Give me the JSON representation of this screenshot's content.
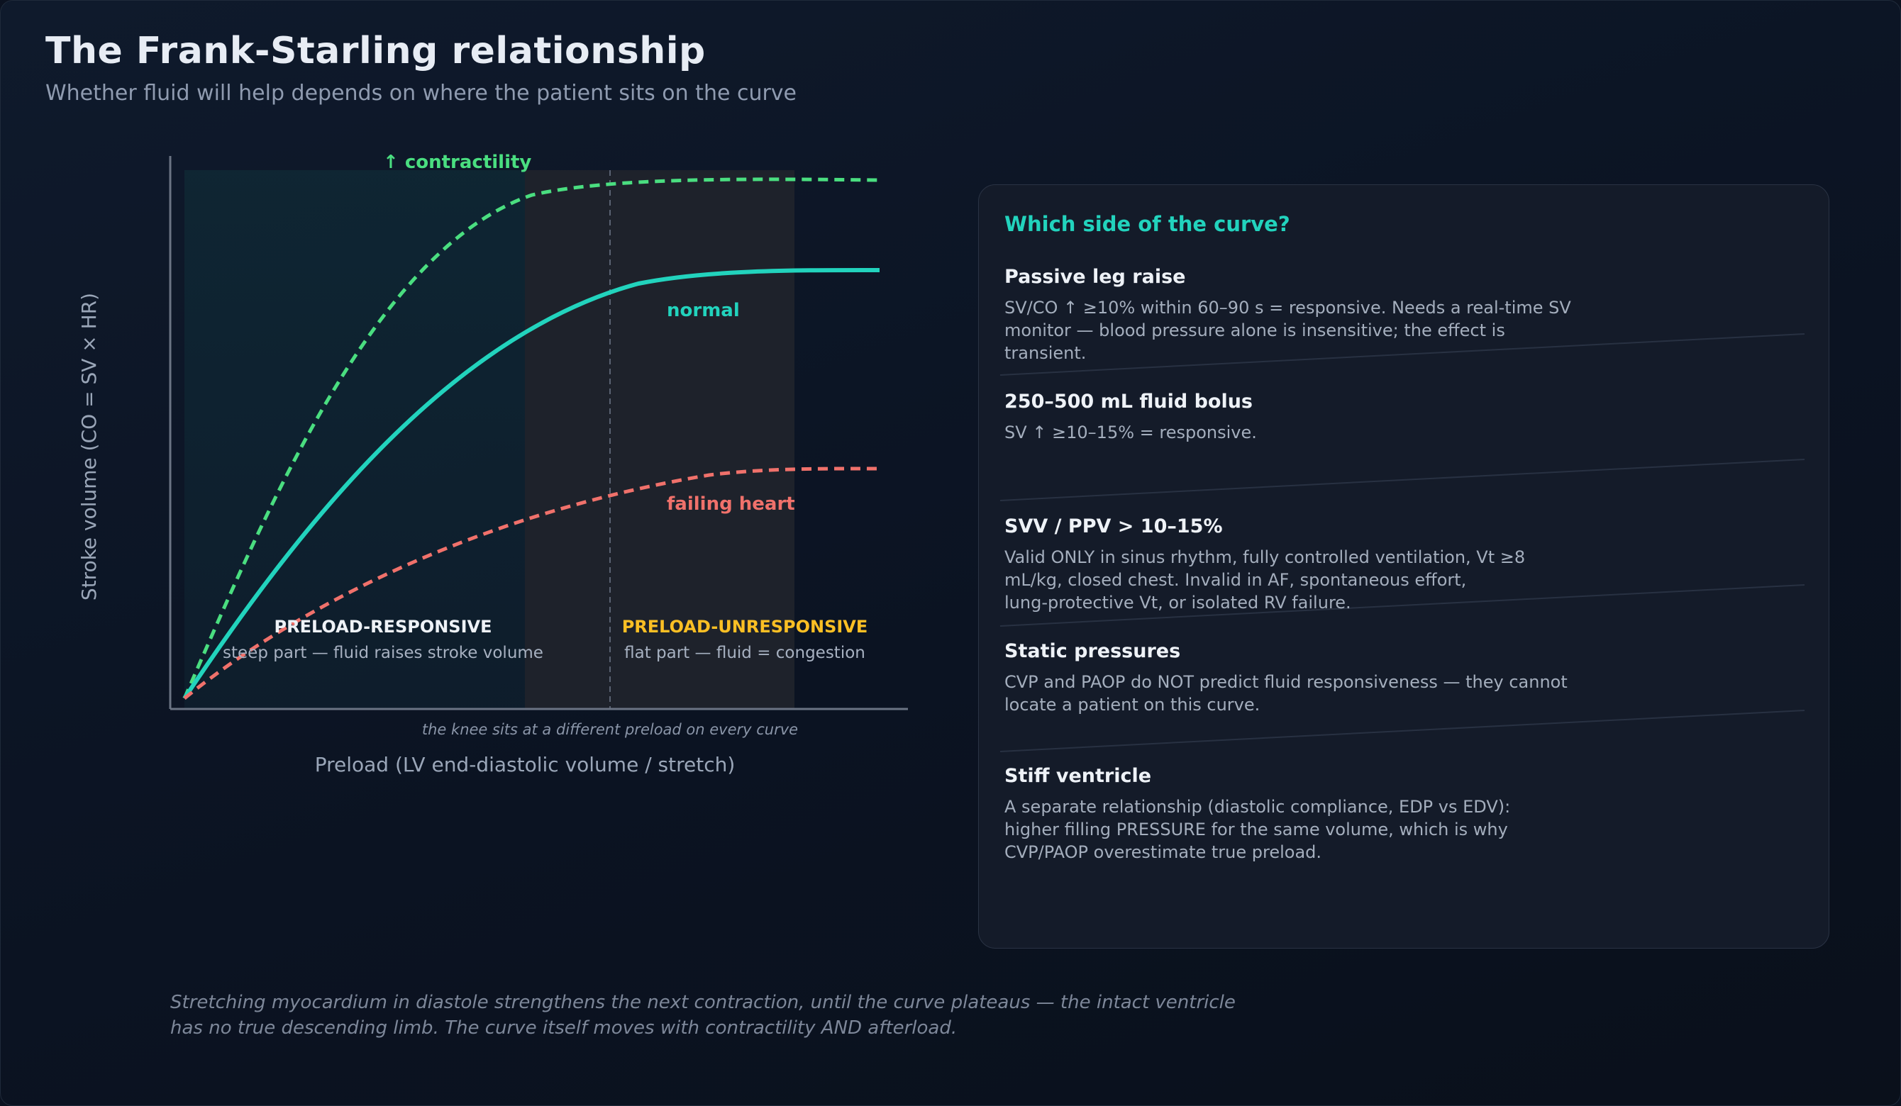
{
  "header": {
    "title": "The Frank-Starling relationship",
    "subtitle": "Whether fluid will help depends on where the patient sits on the curve"
  },
  "chart_data": {
    "type": "line",
    "xlabel": "Preload (LV end-diastolic volume / stretch)",
    "ylabel": "Stroke volume (CO = SV × HR)",
    "grid": false,
    "series": [
      {
        "name": "↑ contractility",
        "style": "dashed",
        "color": "#4ade80"
      },
      {
        "name": "normal",
        "style": "solid",
        "color": "#22d3bd"
      },
      {
        "name": "failing heart",
        "style": "dashed",
        "color": "#f0716b"
      }
    ],
    "regions": [
      {
        "title": "PRELOAD-RESPONSIVE",
        "subtitle": "steep part — fluid raises stroke volume",
        "color": "#ffffff"
      },
      {
        "title": "PRELOAD-UNRESPONSIVE",
        "subtitle": "flat part — fluid = congestion",
        "color": "#fbbf24"
      }
    ],
    "annotation": "the knee sits at a different preload on every curve"
  },
  "panel": {
    "title": "Which side of the curve?",
    "items": [
      {
        "title": "Passive leg raise",
        "text": [
          "SV/CO ↑ ≥10% within 60–90 s = responsive. Needs a real-time SV",
          "monitor — blood pressure alone is insensitive; the effect is",
          "transient."
        ]
      },
      {
        "title": "250–500 mL fluid bolus",
        "text": [
          "SV ↑ ≥10–15% = responsive."
        ]
      },
      {
        "title": "SVV / PPV > 10–15%",
        "text": [
          "Valid ONLY in sinus rhythm, fully controlled ventilation, Vt ≥8",
          "mL/kg, closed chest. Invalid in AF, spontaneous effort,",
          "lung-protective Vt, or isolated RV failure."
        ]
      },
      {
        "title": "Static pressures",
        "text": [
          "CVP and PAOP do NOT predict fluid responsiveness — they cannot",
          "locate a patient on this curve."
        ]
      },
      {
        "title": "Stiff ventricle",
        "text": [
          "A separate relationship (diastolic compliance, EDP vs EDV):",
          "higher filling PRESSURE for the same volume, which is why",
          "CVP/PAOP overestimate true preload."
        ]
      }
    ]
  },
  "footer": {
    "lines": [
      "Stretching myocardium in diastole strengthens the next contraction, until the curve plateaus — the intact ventricle",
      "has no true descending limb. The curve itself moves with contractility AND afterload."
    ]
  },
  "colors": {
    "accent": "#22d3bd",
    "contractility": "#4ade80",
    "failing": "#f0716b",
    "unresponsive": "#fbbf24"
  }
}
